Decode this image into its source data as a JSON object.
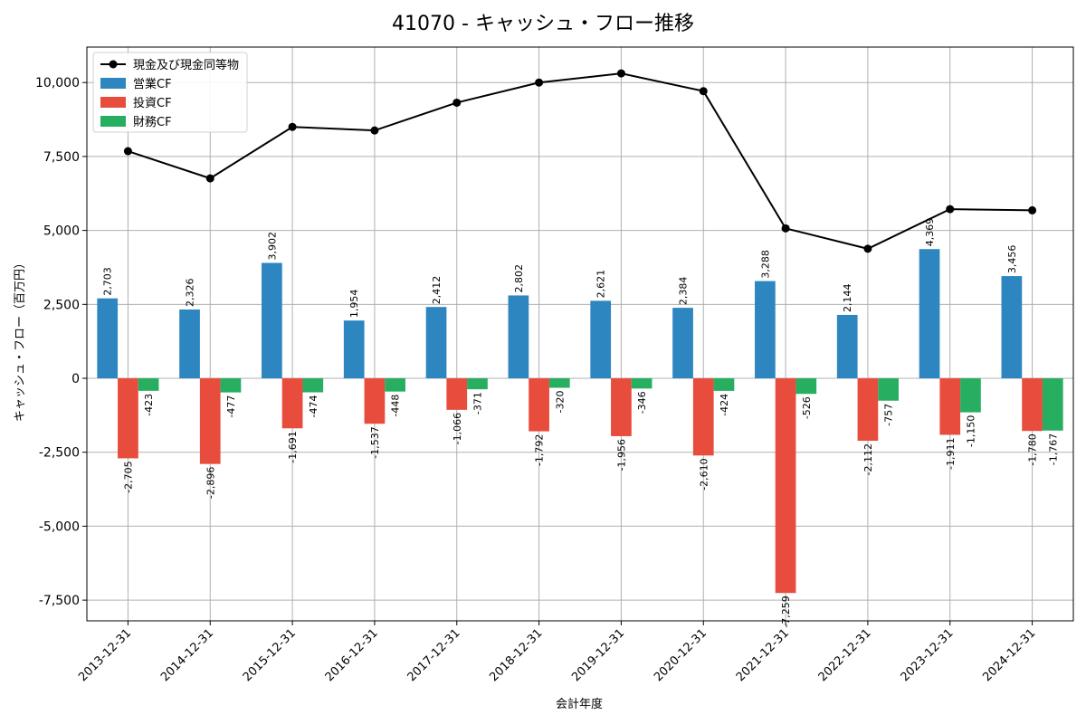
{
  "chart_data": {
    "type": "bar",
    "title": "41070 - キャッシュ・フロー推移",
    "xlabel": "会計年度",
    "ylabel": "キャッシュ・フロー（百万円）",
    "ylim": [
      -8200,
      11200
    ],
    "yticks": [
      -7500,
      -5000,
      -2500,
      0,
      2500,
      5000,
      7500,
      10000
    ],
    "ytick_labels": [
      "-7,500",
      "-5,000",
      "-2,500",
      "0",
      "2,500",
      "5,000",
      "7,500",
      "10,000"
    ],
    "grid": true,
    "legend_position": "top-left",
    "categories": [
      "2013-12-31",
      "2014-12-31",
      "2015-12-31",
      "2016-12-31",
      "2017-12-31",
      "2018-12-31",
      "2019-12-31",
      "2020-12-31",
      "2021-12-31",
      "2022-12-31",
      "2023-12-31",
      "2024-12-31"
    ],
    "series": [
      {
        "name": "営業CF",
        "kind": "bar",
        "color": "#2e86c1",
        "values": [
          2703,
          2326,
          3902,
          1954,
          2412,
          2802,
          2621,
          2384,
          3288,
          2144,
          4369,
          3456
        ],
        "labels": [
          "2,703",
          "2,326",
          "3,902",
          "1,954",
          "2,412",
          "2,802",
          "2,621",
          "2,384",
          "3,288",
          "2,144",
          "4,369",
          "3,456"
        ]
      },
      {
        "name": "投資CF",
        "kind": "bar",
        "color": "#e74c3c",
        "values": [
          -2705,
          -2896,
          -1691,
          -1537,
          -1066,
          -1792,
          -1956,
          -2610,
          -7259,
          -2112,
          -1911,
          -1780
        ],
        "labels": [
          "-2,705",
          "-2,896",
          "-1,691",
          "-1,537",
          "-1,066",
          "-1,792",
          "-1,956",
          "-2,610",
          "-7,259",
          "-2,112",
          "-1,911",
          "-1,780"
        ]
      },
      {
        "name": "財務CF",
        "kind": "bar",
        "color": "#27ae60",
        "values": [
          -423,
          -477,
          -474,
          -448,
          -371,
          -320,
          -346,
          -424,
          -526,
          -757,
          -1150,
          -1767
        ],
        "labels": [
          "-423",
          "-477",
          "-474",
          "-448",
          "-371",
          "-320",
          "-346",
          "-424",
          "-526",
          "-757",
          "-1,150",
          "-1,767"
        ]
      },
      {
        "name": "現金及び現金同等物",
        "kind": "line",
        "color": "#000000",
        "values": [
          7680,
          6760,
          8500,
          8380,
          9320,
          10000,
          10310,
          9710,
          5070,
          4380,
          5720,
          5680
        ]
      }
    ]
  }
}
